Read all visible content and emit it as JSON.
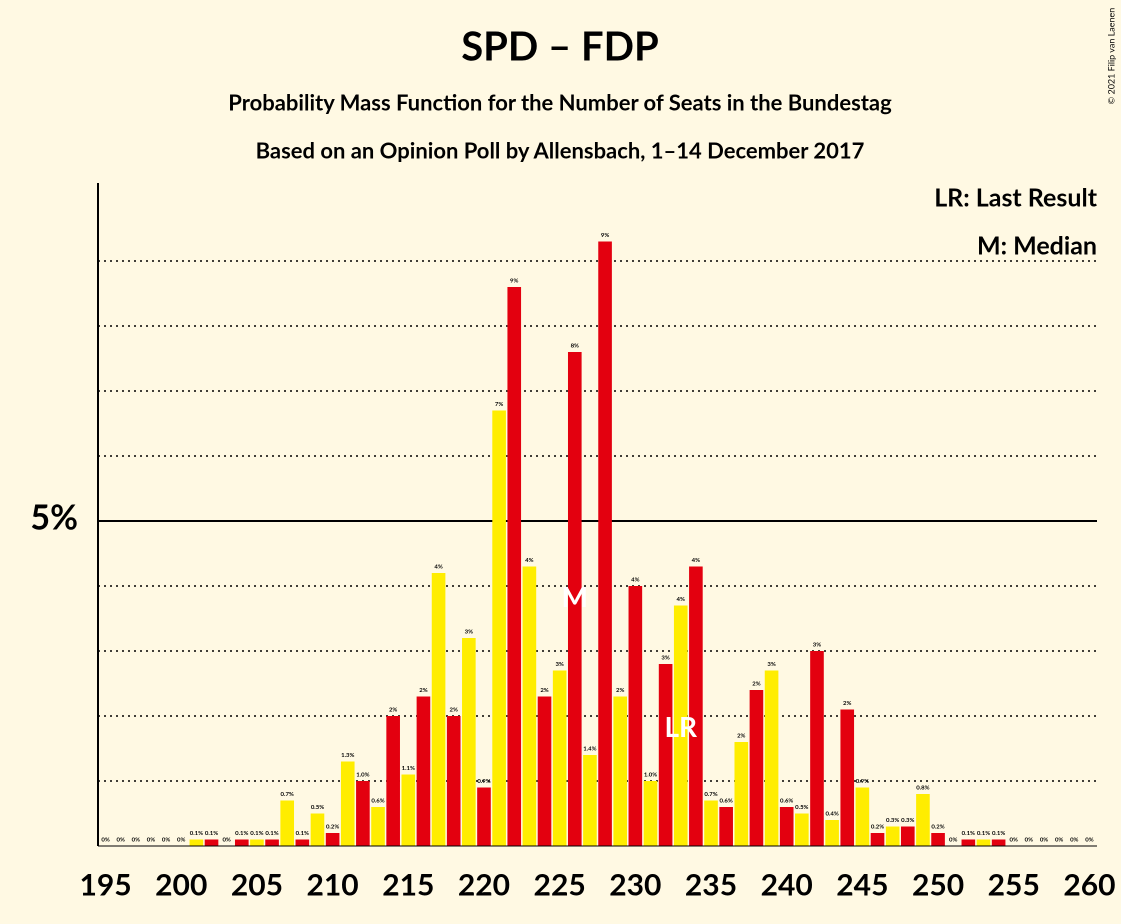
{
  "chart_data": {
    "type": "bar",
    "title": "SPD – FDP",
    "subtitle": "Probability Mass Function for the Number of Seats in the Bundestag",
    "subtitle2": "Based on an Opinion Poll by Allensbach, 1–14 December 2017",
    "legend": [
      "LR: Last Result",
      "M: Median"
    ],
    "copyright": "© 2021 Filip van Laenen",
    "x": [
      195,
      196,
      197,
      198,
      199,
      200,
      201,
      202,
      203,
      204,
      205,
      206,
      207,
      208,
      209,
      210,
      211,
      212,
      213,
      214,
      215,
      216,
      217,
      218,
      219,
      220,
      221,
      222,
      223,
      224,
      225,
      226,
      227,
      228,
      229,
      230,
      231,
      232,
      233,
      234,
      235,
      236,
      237,
      238,
      239,
      240,
      241,
      242,
      243,
      244,
      245,
      246,
      247,
      248,
      249,
      250,
      251,
      252,
      253,
      254,
      255,
      256,
      257,
      258,
      259,
      260
    ],
    "values": [
      0,
      0,
      0,
      0,
      0,
      0,
      0.1,
      0.1,
      0,
      0.1,
      0.1,
      0.1,
      0.7,
      0.1,
      0.5,
      0.2,
      1.3,
      1.0,
      0.6,
      2.0,
      1.1,
      2.3,
      4.2,
      2.0,
      3.2,
      0.9,
      6.7,
      8.6,
      4.3,
      2.3,
      2.7,
      7.6,
      1.4,
      9.3,
      2.3,
      4.0,
      1.0,
      2.8,
      3.7,
      4.3,
      0.7,
      0.6,
      1.6,
      2.4,
      2.7,
      0.6,
      0.5,
      3.0,
      0.4,
      2.1,
      0.9,
      0.2,
      0.3,
      0.3,
      0.8,
      0.2,
      0,
      0.1,
      0.1,
      0.1,
      0,
      0,
      0,
      0,
      0,
      0
    ],
    "value_labels": [
      "0%",
      "0%",
      "0%",
      "0%",
      "0%",
      "0%",
      "0.1%",
      "0.1%",
      "0%",
      "0.1%",
      "0.1%",
      "0.1%",
      "0.7%",
      "0.1%",
      "0.5%",
      "0.2%",
      "1.3%",
      "1.0%",
      "0.6%",
      "2%",
      "1.1%",
      "2%",
      "4%",
      "2%",
      "3%",
      "0.9%",
      "7%",
      "9%",
      "4%",
      "2%",
      "3%",
      "8%",
      "1.4%",
      "9%",
      "2%",
      "4%",
      "1.0%",
      "3%",
      "4%",
      "4%",
      "0.7%",
      "0.6%",
      "2%",
      "2%",
      "3%",
      "0.6%",
      "0.5%",
      "3%",
      "0.4%",
      "2%",
      "0.9%",
      "0.2%",
      "0.3%",
      "0.3%",
      "0.8%",
      "0.2%",
      "0%",
      "0.1%",
      "0.1%",
      "0.1%",
      "0%",
      "0%",
      "0%",
      "0%",
      "0%",
      "0%"
    ],
    "colors": [
      "#ffed00",
      "#e3000f"
    ],
    "markers": [
      {
        "x": 226,
        "label": "M"
      },
      {
        "x": 233,
        "label": "LR"
      }
    ],
    "xlim": [
      194.5,
      260.5
    ],
    "xticks": [
      195,
      200,
      205,
      210,
      215,
      220,
      225,
      230,
      235,
      240,
      245,
      250,
      255,
      260
    ],
    "ylim": [
      0,
      10.2
    ],
    "yticks": [
      {
        "value": 5,
        "label": "5%"
      }
    ],
    "grid_lines": [
      1,
      2,
      3,
      4,
      6,
      7,
      8,
      9
    ]
  }
}
